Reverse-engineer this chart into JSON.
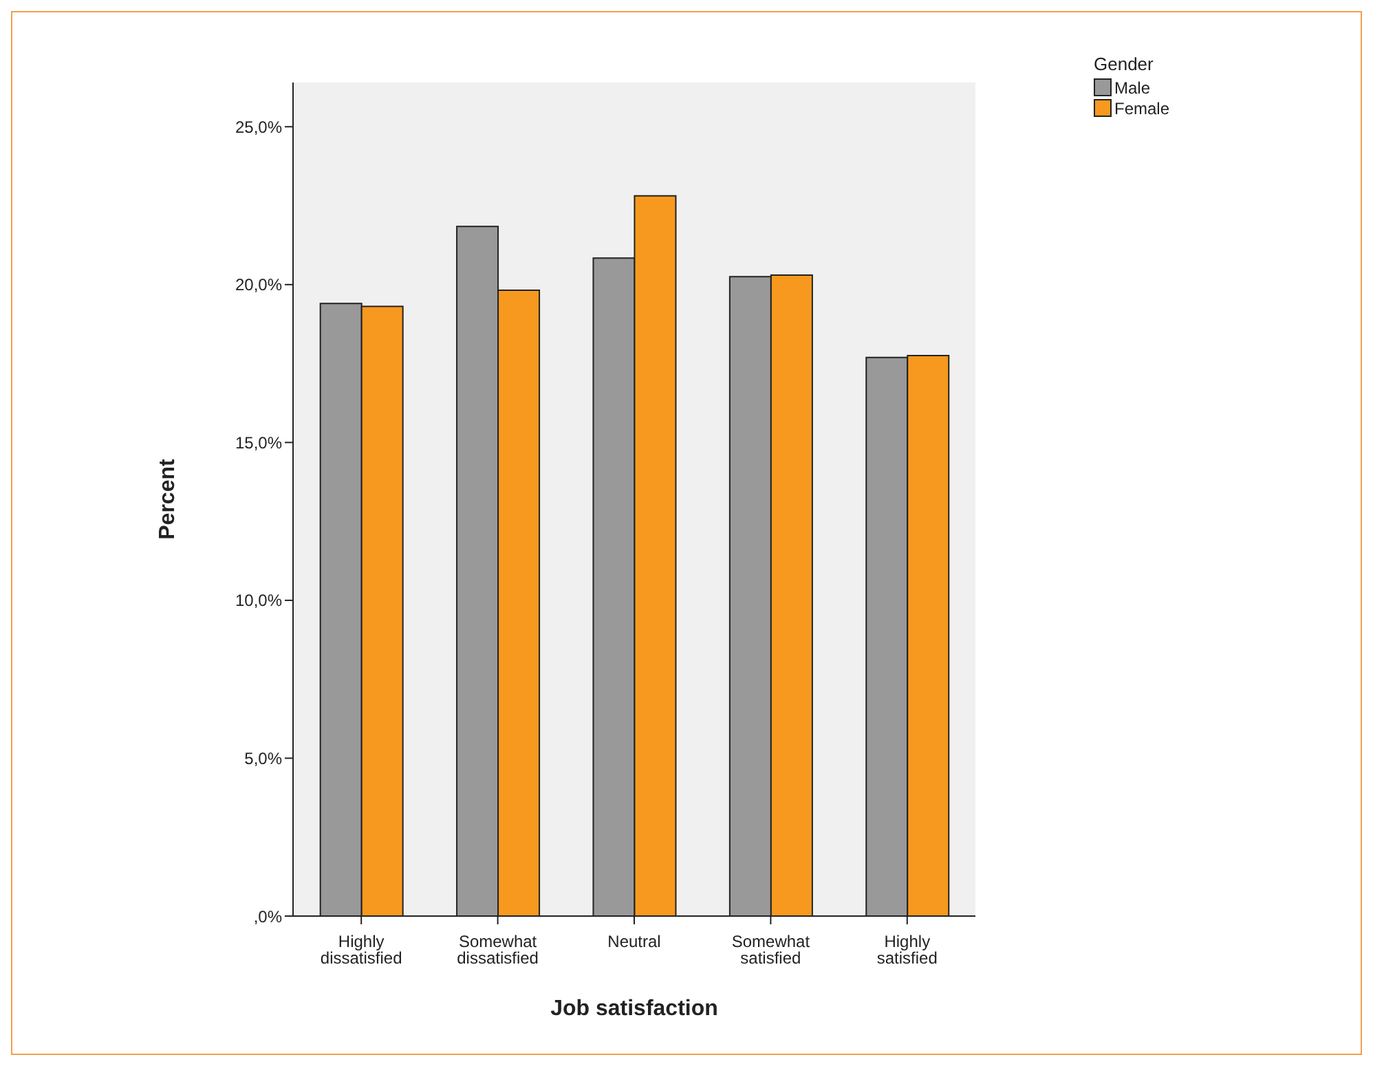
{
  "chart_data": {
    "type": "bar",
    "xlabel": "Job satisfaction",
    "ylabel": "Percent",
    "legend_title": "Gender",
    "legend": "top right",
    "grid": false,
    "categories": [
      "Highly dissatisfied",
      "Somewhat dissatisfied",
      "Neutral",
      "Somewhat satisfied",
      "Highly satisfied"
    ],
    "series": [
      {
        "name": "Male",
        "color": "#999999",
        "values": [
          19.4,
          21.84,
          20.84,
          20.25,
          17.69
        ]
      },
      {
        "name": "Female",
        "color": "#f7991e",
        "values": [
          19.31,
          19.82,
          22.81,
          20.3,
          17.75
        ]
      }
    ],
    "ylim": [
      0,
      26.4
    ],
    "yticks": [
      {
        "value": 0,
        "label": ",0%"
      },
      {
        "value": 5,
        "label": "5,0%"
      },
      {
        "value": 10,
        "label": "10,0%"
      },
      {
        "value": 15,
        "label": "15,0%"
      },
      {
        "value": 20,
        "label": "20,0%"
      },
      {
        "value": 25,
        "label": "25,0%"
      }
    ]
  }
}
